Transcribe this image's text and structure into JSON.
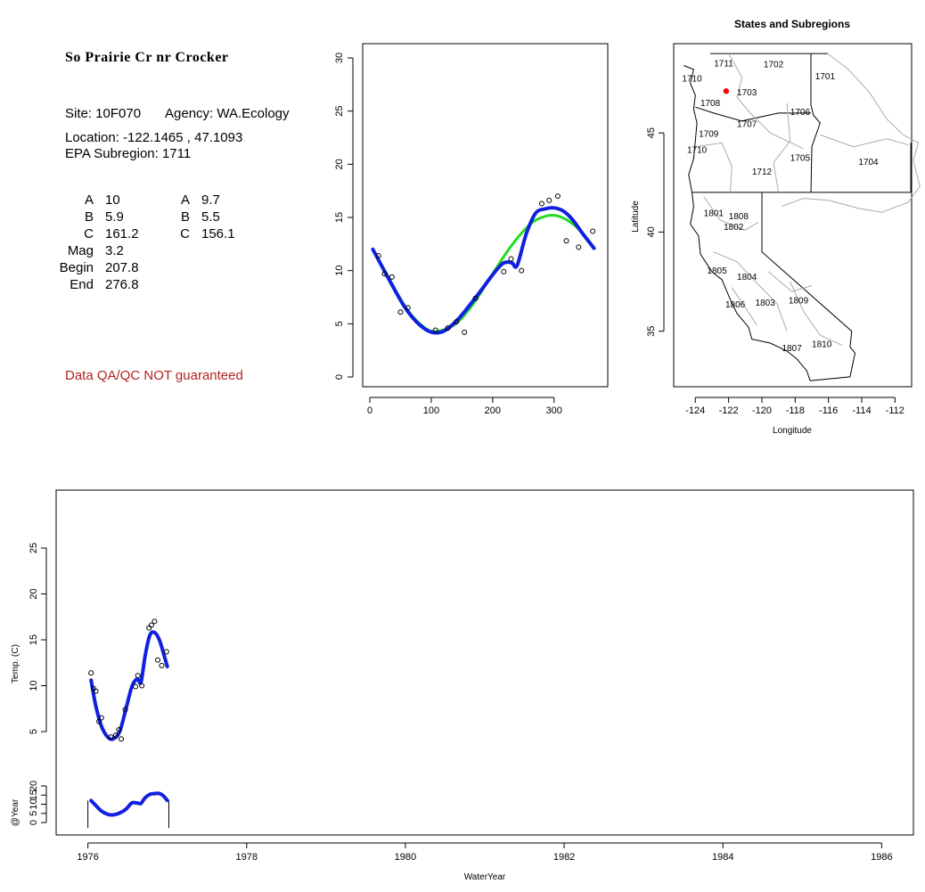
{
  "site": {
    "title": "So Prairie Cr nr Crocker",
    "site_label": "Site: 10F070",
    "agency_label": "Agency: WA.Ecology",
    "location_label": "Location: -122.1465 , 47.1093",
    "subregion_label": "EPA Subregion: 1711",
    "qa_note": "Data QA/QC NOT guaranteed"
  },
  "params": [
    {
      "name": "A",
      "v1": "10",
      "name2": "A",
      "v2": "9.7"
    },
    {
      "name": "B",
      "v1": "5.9",
      "name2": "B",
      "v2": "5.5"
    },
    {
      "name": "C",
      "v1": "161.2",
      "name2": "C",
      "v2": "156.1"
    },
    {
      "name": "Mag",
      "v1": "3.2",
      "name2": "",
      "v2": ""
    },
    {
      "name": "Begin",
      "v1": "207.8",
      "name2": "",
      "v2": ""
    },
    {
      "name": "End",
      "v1": "276.8",
      "name2": "",
      "v2": ""
    }
  ],
  "colors": {
    "fit_green": "#22dd22",
    "fit_blue": "#1020e0",
    "marker": "#ff0000",
    "qa_red": "#b22222"
  },
  "chart_data": [
    {
      "type": "scatter",
      "title": "",
      "xlabel": "",
      "ylabel": "",
      "xlim": [
        0,
        370
      ],
      "ylim": [
        0,
        31
      ],
      "xticks": [
        0,
        100,
        200,
        300
      ],
      "yticks": [
        0,
        5,
        10,
        15,
        20,
        25,
        30
      ],
      "points": {
        "x": [
          14,
          24,
          36,
          50,
          62,
          107,
          127,
          141,
          154,
          172,
          218,
          230,
          247,
          280,
          292,
          306,
          320,
          340,
          363
        ],
        "y": [
          11.4,
          9.7,
          9.4,
          6.1,
          6.5,
          4.4,
          4.6,
          5.2,
          4.2,
          7.4,
          9.9,
          11.1,
          10,
          16.3,
          16.6,
          17,
          12.8,
          12.2,
          13.7
        ]
      },
      "series": [
        {
          "name": "",
          "color": "#22dd22",
          "x": [
            5,
            30,
            60,
            90,
            110,
            140,
            170,
            200,
            230,
            260,
            280,
            300,
            320,
            340,
            365
          ],
          "y": [
            11.9,
            9.4,
            6.4,
            4.6,
            4.3,
            5.0,
            7.0,
            9.7,
            12.3,
            14.3,
            15.0,
            15.2,
            14.8,
            13.9,
            12.1
          ]
        },
        {
          "name": "",
          "color": "#1020e0",
          "x": [
            5,
            30,
            60,
            90,
            115,
            140,
            170,
            200,
            215,
            225,
            232,
            240,
            255,
            270,
            285,
            300,
            315,
            330,
            345,
            365
          ],
          "y": [
            12.0,
            9.3,
            6.3,
            4.5,
            4.2,
            5.2,
            7.3,
            9.6,
            10.6,
            10.8,
            10.7,
            10.5,
            13.5,
            15.4,
            15.8,
            15.9,
            15.6,
            14.8,
            13.6,
            12.1
          ]
        }
      ]
    },
    {
      "type": "map",
      "title": "States and Subregions",
      "xlabel": "Longitude",
      "ylabel": "Latitude",
      "xlim": [
        -125.3,
        -111.0
      ],
      "ylim": [
        32.2,
        49.5
      ],
      "xticks": [
        -124,
        -122,
        -120,
        -118,
        -116,
        -114,
        -112
      ],
      "yticks": [
        35,
        40,
        45
      ],
      "site_point": {
        "lon": -122.1465,
        "lat": 47.1093
      },
      "region_labels": [
        {
          "text": "1711",
          "lon": -122.3,
          "lat": 48.35
        },
        {
          "text": "1702",
          "lon": -119.3,
          "lat": 48.3
        },
        {
          "text": "1701",
          "lon": -116.2,
          "lat": 47.7
        },
        {
          "text": "1710",
          "lon": -124.2,
          "lat": 47.6
        },
        {
          "text": "1703",
          "lon": -120.9,
          "lat": 46.9
        },
        {
          "text": "1708",
          "lon": -123.1,
          "lat": 46.35
        },
        {
          "text": "1706",
          "lon": -117.7,
          "lat": 45.9
        },
        {
          "text": "1707",
          "lon": -120.9,
          "lat": 45.3
        },
        {
          "text": "1709",
          "lon": -123.2,
          "lat": 44.8
        },
        {
          "text": "1710",
          "lon": -123.9,
          "lat": 44.0
        },
        {
          "text": "1705",
          "lon": -117.7,
          "lat": 43.6
        },
        {
          "text": "1704",
          "lon": -113.6,
          "lat": 43.4
        },
        {
          "text": "1712",
          "lon": -120.0,
          "lat": 42.9
        },
        {
          "text": "1801",
          "lon": -122.9,
          "lat": 40.8
        },
        {
          "text": "1808",
          "lon": -121.4,
          "lat": 40.65
        },
        {
          "text": "1802",
          "lon": -121.7,
          "lat": 40.1
        },
        {
          "text": "1805",
          "lon": -122.7,
          "lat": 37.9
        },
        {
          "text": "1804",
          "lon": -120.9,
          "lat": 37.6
        },
        {
          "text": "1806",
          "lon": -121.6,
          "lat": 36.2
        },
        {
          "text": "1803",
          "lon": -119.8,
          "lat": 36.3
        },
        {
          "text": "1809",
          "lon": -117.8,
          "lat": 36.4
        },
        {
          "text": "1807",
          "lon": -118.2,
          "lat": 34.0
        },
        {
          "text": "1810",
          "lon": -116.4,
          "lat": 34.2
        }
      ]
    },
    {
      "type": "scatter",
      "title": "",
      "xlabel": "WaterYear",
      "ylabel": "Temp. (C)",
      "xlim": [
        1975.6,
        1986.4
      ],
      "ylim": [
        2,
        30
      ],
      "xticks": [
        1976,
        1978,
        1980,
        1982,
        1984,
        1986
      ],
      "yticks": [
        5,
        10,
        15,
        20,
        25
      ],
      "points": {
        "x": [
          1976.04,
          1976.07,
          1976.1,
          1976.14,
          1976.17,
          1976.29,
          1976.35,
          1976.39,
          1976.42,
          1976.47,
          1976.6,
          1976.63,
          1976.68,
          1976.77,
          1976.8,
          1976.84,
          1976.88,
          1976.93,
          1976.99
        ],
        "y": [
          11.4,
          9.7,
          9.4,
          6.1,
          6.5,
          4.4,
          4.6,
          5.2,
          4.2,
          7.4,
          9.9,
          11.1,
          10.0,
          16.3,
          16.6,
          17.0,
          12.8,
          12.2,
          13.7
        ]
      },
      "series": [
        {
          "name": "",
          "color": "#1020e0",
          "x": [
            1976.04,
            1976.1,
            1976.17,
            1976.25,
            1976.32,
            1976.4,
            1976.48,
            1976.55,
            1976.6,
            1976.63,
            1976.67,
            1976.72,
            1976.78,
            1976.84,
            1976.9,
            1976.95,
            1977.0
          ],
          "y": [
            10.6,
            7.8,
            5.6,
            4.4,
            4.2,
            5.0,
            7.5,
            9.8,
            10.6,
            10.7,
            10.4,
            13.2,
            15.5,
            15.8,
            15.0,
            13.6,
            12.1
          ]
        }
      ]
    },
    {
      "type": "line",
      "title": "",
      "xlabel": "",
      "ylabel": "@Year",
      "xlim": [
        1975.6,
        1986.4
      ],
      "ylim": [
        -2,
        26
      ],
      "xticks": [],
      "yticks": [
        0,
        5,
        10,
        15,
        20
      ],
      "ytick_labels": [
        "0",
        "5",
        "10",
        "15",
        "20"
      ],
      "series": [
        {
          "name": "",
          "color": "#1020e0",
          "x": [
            1976.04,
            1976.1,
            1976.17,
            1976.25,
            1976.32,
            1976.4,
            1976.48,
            1976.55,
            1976.6,
            1976.63,
            1976.67,
            1976.72,
            1976.78,
            1976.84,
            1976.9,
            1976.95,
            1977.0
          ],
          "y": [
            12.0,
            9.3,
            6.3,
            4.5,
            4.2,
            5.2,
            7.3,
            10.6,
            10.8,
            10.6,
            10.5,
            13.5,
            15.4,
            15.8,
            15.9,
            14.6,
            12.1
          ]
        }
      ],
      "segments_x": [
        1976.0,
        1977.02
      ]
    }
  ]
}
